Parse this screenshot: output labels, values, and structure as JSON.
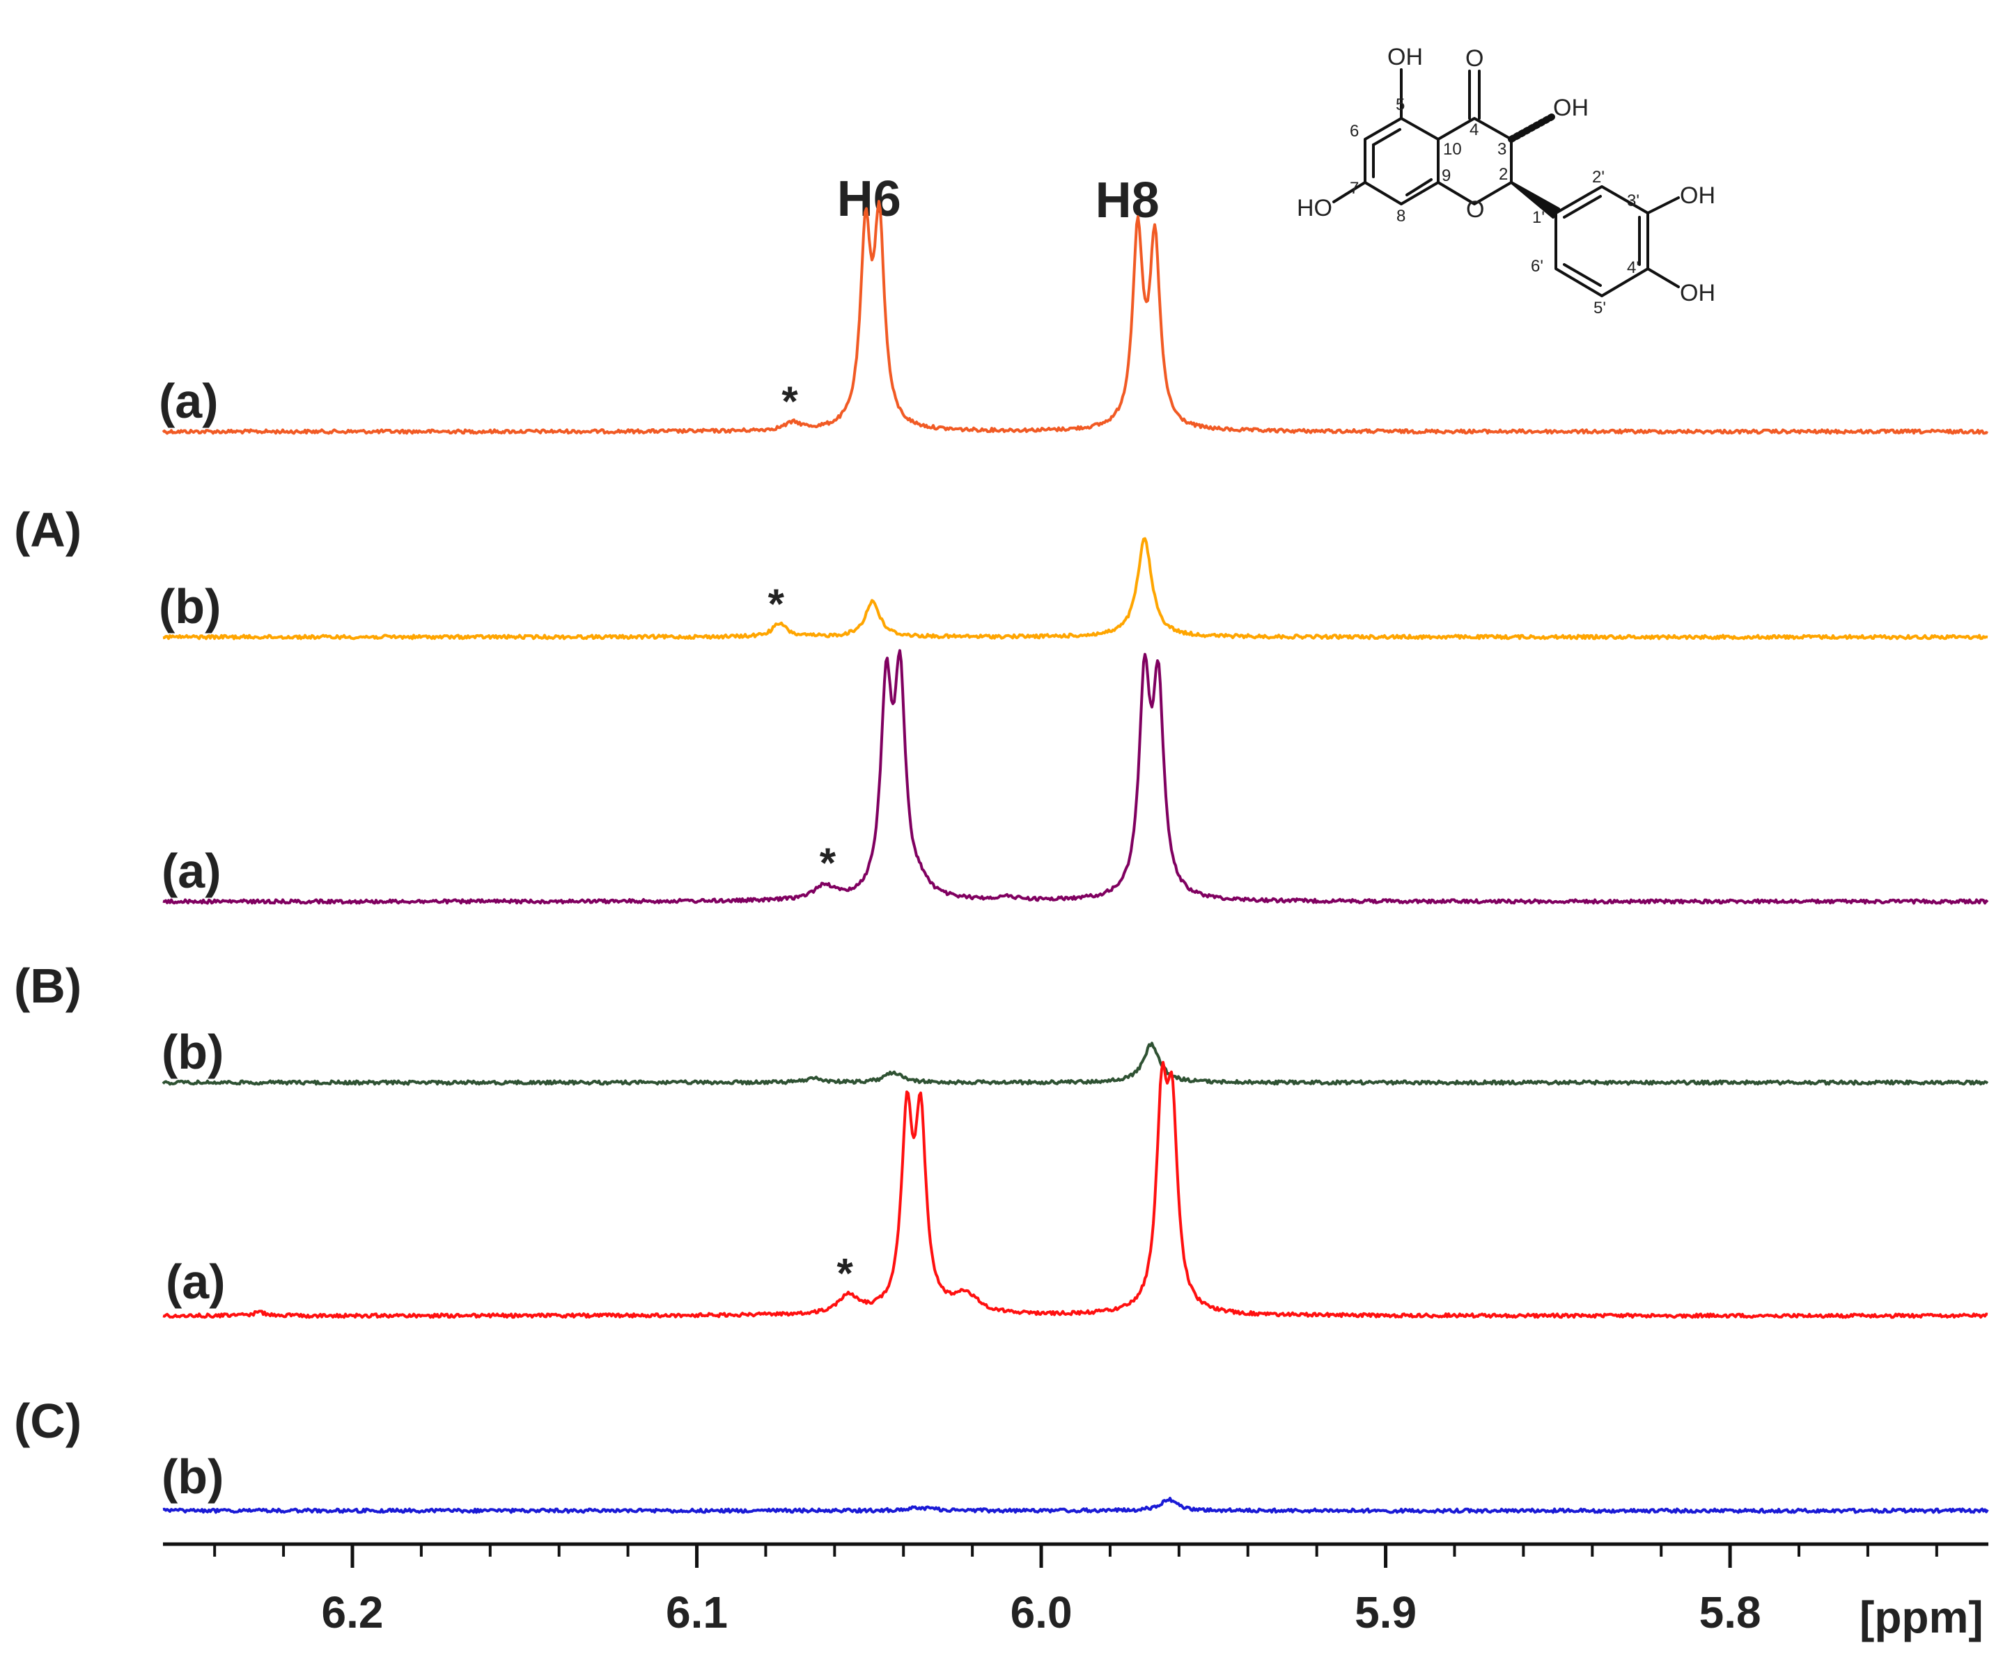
{
  "chart_data": {
    "type": "line",
    "title": "",
    "xlabel": "[ppm]",
    "ylabel": "",
    "x_reversed": true,
    "xlim": [
      6.255,
      5.725
    ],
    "xticks": [
      6.2,
      6.1,
      6.0,
      5.9,
      5.8
    ],
    "xtick_labels": [
      "6.2",
      "6.1",
      "6.0",
      "5.9",
      "5.8"
    ],
    "minor_tick_step": 0.02,
    "grid": false,
    "legend": "none",
    "group_labels": [
      "(A)",
      "(B)",
      "(C)"
    ],
    "peak_labels": [
      {
        "text": "H6",
        "x": 6.05
      },
      {
        "text": "H8",
        "x": 5.975
      }
    ],
    "impurity_marker": "*",
    "series": [
      {
        "group": "A",
        "trace": "(a)",
        "color": "#f15a24",
        "peaks": [
          {
            "x": 6.051,
            "height": 1.0,
            "width": 0.0018
          },
          {
            "x": 6.047,
            "height": 1.05,
            "width": 0.0018
          },
          {
            "x": 5.972,
            "height": 1.02,
            "width": 0.0018
          },
          {
            "x": 5.967,
            "height": 0.98,
            "width": 0.0018
          },
          {
            "x": 6.072,
            "height": 0.04,
            "width": 0.003
          }
        ],
        "marker_x": 6.073
      },
      {
        "group": "A",
        "trace": "(b)",
        "color": "#ffa500",
        "peaks": [
          {
            "x": 6.049,
            "height": 0.19,
            "width": 0.0025
          },
          {
            "x": 5.97,
            "height": 0.52,
            "width": 0.0025
          },
          {
            "x": 6.076,
            "height": 0.07,
            "width": 0.0025
          }
        ],
        "marker_x": 6.077
      },
      {
        "group": "B",
        "trace": "(a)",
        "color": "#800060",
        "peaks": [
          {
            "x": 6.045,
            "height": 1.0,
            "width": 0.0019
          },
          {
            "x": 6.041,
            "height": 1.04,
            "width": 0.0019
          },
          {
            "x": 5.97,
            "height": 1.04,
            "width": 0.0019
          },
          {
            "x": 5.966,
            "height": 1.0,
            "width": 0.0019
          },
          {
            "x": 6.063,
            "height": 0.07,
            "width": 0.0035
          },
          {
            "x": 6.035,
            "height": 0.05,
            "width": 0.003
          },
          {
            "x": 6.01,
            "height": 0.015,
            "width": 0.004
          }
        ],
        "marker_x": 6.062
      },
      {
        "group": "B",
        "trace": "(b)",
        "color": "#2f5233",
        "peaks": [
          {
            "x": 6.043,
            "height": 0.05,
            "width": 0.003
          },
          {
            "x": 5.968,
            "height": 0.19,
            "width": 0.0028
          },
          {
            "x": 6.066,
            "height": 0.02,
            "width": 0.003
          }
        ],
        "marker_x": null
      },
      {
        "group": "C",
        "trace": "(a)",
        "color": "#ff1010",
        "peaks": [
          {
            "x": 6.039,
            "height": 1.0,
            "width": 0.0019
          },
          {
            "x": 6.035,
            "height": 0.98,
            "width": 0.0019
          },
          {
            "x": 5.965,
            "height": 1.04,
            "width": 0.0019
          },
          {
            "x": 5.962,
            "height": 0.98,
            "width": 0.0019
          },
          {
            "x": 6.056,
            "height": 0.1,
            "width": 0.0035
          },
          {
            "x": 6.022,
            "height": 0.1,
            "width": 0.0045
          },
          {
            "x": 6.227,
            "height": 0.02,
            "width": 0.002
          }
        ],
        "marker_x": 6.057
      },
      {
        "group": "C",
        "trace": "(b)",
        "color": "#1a1ad6",
        "peaks": [
          {
            "x": 5.963,
            "height": 0.06,
            "width": 0.003
          },
          {
            "x": 6.035,
            "height": 0.015,
            "width": 0.005
          }
        ],
        "marker_x": null
      }
    ]
  },
  "molecule": {
    "atom_labels": [
      "O",
      "OH",
      "OH",
      "HO",
      "O",
      "OH",
      "OH"
    ],
    "position_numbers": [
      "5",
      "6",
      "7",
      "8",
      "9",
      "10",
      "4",
      "3",
      "2",
      "1'",
      "2'",
      "3'",
      "4'",
      "5'",
      "6'"
    ]
  }
}
